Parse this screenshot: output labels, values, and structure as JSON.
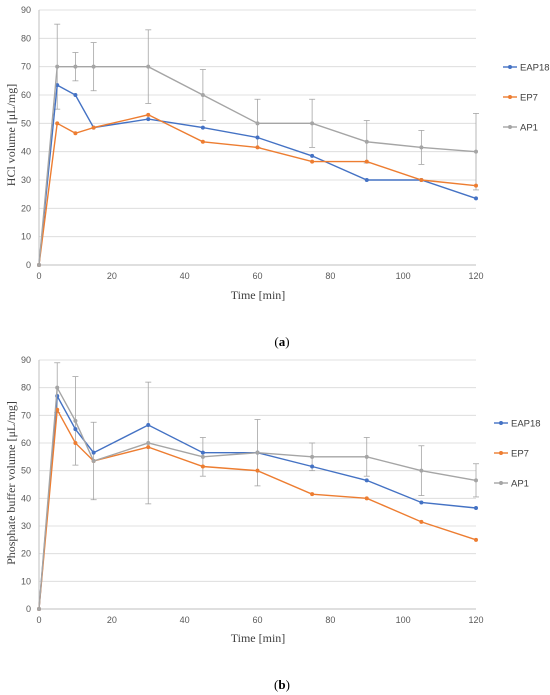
{
  "chart_data": [
    {
      "type": "line",
      "caption": "(a)",
      "xlabel": "Time [min]",
      "ylabel": "HCl volume [μL/mg]",
      "xlim": [
        0,
        120
      ],
      "ylim": [
        0,
        90
      ],
      "xticks": [
        0,
        20,
        40,
        60,
        80,
        100,
        120
      ],
      "yticks": [
        0,
        10,
        20,
        30,
        40,
        50,
        60,
        70,
        80,
        90
      ],
      "grid": "horizontal",
      "legend_position": "right",
      "x": [
        0,
        5,
        10,
        15,
        30,
        45,
        60,
        75,
        90,
        105,
        120
      ],
      "series": [
        {
          "name": "EAP18",
          "color": "#4472C4",
          "values": [
            0,
            63.5,
            60,
            48.5,
            51.5,
            48.5,
            45,
            38.5,
            30,
            30,
            23.5
          ],
          "errors": [
            0,
            0,
            0,
            0,
            0,
            0,
            0,
            0,
            0,
            0,
            0
          ]
        },
        {
          "name": "EP7",
          "color": "#ED7D31",
          "values": [
            0,
            50,
            46.5,
            48.5,
            53,
            43.5,
            41.5,
            36.5,
            36.5,
            30,
            28
          ],
          "errors": [
            0,
            0,
            0,
            0,
            0,
            0,
            0,
            0,
            0,
            0,
            0
          ]
        },
        {
          "name": "AP1",
          "color": "#A5A5A5",
          "values": [
            0,
            70,
            70,
            70,
            70,
            60,
            50,
            50,
            43.5,
            41.5,
            40
          ],
          "errors": [
            0,
            15,
            5,
            8.5,
            13,
            9,
            8.5,
            8.5,
            7.5,
            6,
            13.5
          ]
        }
      ]
    },
    {
      "type": "line",
      "caption": "(b)",
      "xlabel": "Time [min]",
      "ylabel": "Phosphate buffer volume [μL/mg]",
      "xlim": [
        0,
        120
      ],
      "ylim": [
        0,
        90
      ],
      "xticks": [
        0,
        20,
        40,
        60,
        80,
        100,
        120
      ],
      "yticks": [
        0,
        10,
        20,
        30,
        40,
        50,
        60,
        70,
        80,
        90
      ],
      "grid": "horizontal",
      "legend_position": "right",
      "x": [
        0,
        5,
        10,
        15,
        30,
        45,
        60,
        75,
        90,
        105,
        120
      ],
      "series": [
        {
          "name": "EAP18",
          "color": "#4472C4",
          "values": [
            0,
            77,
            65,
            56.5,
            66.5,
            56.5,
            56.5,
            51.5,
            46.5,
            38.5,
            36.5
          ],
          "errors": [
            0,
            0,
            0,
            0,
            0,
            0,
            0,
            0,
            0,
            0,
            0
          ]
        },
        {
          "name": "EP7",
          "color": "#ED7D31",
          "values": [
            0,
            72,
            60,
            53.5,
            58.5,
            51.5,
            50,
            41.5,
            40,
            31.5,
            25
          ],
          "errors": [
            0,
            0,
            0,
            0,
            0,
            0,
            0,
            0,
            0,
            0,
            0
          ]
        },
        {
          "name": "AP1",
          "color": "#A5A5A5",
          "values": [
            0,
            80,
            68,
            53.5,
            60,
            55,
            56.5,
            55,
            55,
            50,
            46.5
          ],
          "errors": [
            0,
            9,
            16,
            14,
            22,
            7,
            12,
            5,
            7,
            9,
            6
          ]
        }
      ]
    }
  ]
}
